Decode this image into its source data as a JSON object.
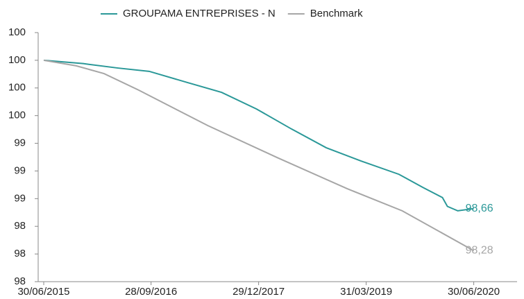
{
  "chart_data": {
    "type": "line",
    "xticks": [
      "30/06/2015",
      "28/09/2016",
      "29/12/2017",
      "31/03/2019",
      "30/06/2020"
    ],
    "xlim": [
      "30/06/2015",
      "31/12/2020"
    ],
    "ylim": [
      98,
      100.25
    ],
    "yticks": [
      98,
      {
        "value": 98.25,
        "label": "98"
      },
      {
        "value": 98.5,
        "label": "98"
      },
      {
        "value": 98.75,
        "label": "99"
      },
      99,
      {
        "value": 99.25,
        "label": "99"
      },
      {
        "value": 99.5,
        "label": "100"
      },
      {
        "value": 99.75,
        "label": "100"
      },
      100,
      {
        "value": 100.25,
        "label": "100"
      }
    ],
    "legend": "top",
    "series": [
      {
        "name": "GROUPAMA ENTREPRISES - N",
        "color": "#2a9898",
        "x": [
          "30/06/2015",
          "15/12/2015",
          "10/05/2016",
          "20/09/2016",
          "28/02/2017",
          "25/07/2017",
          "20/12/2017",
          "17/05/2018",
          "12/10/2018",
          "09/03/2019",
          "17/08/2019",
          "28/11/2019",
          "18/02/2020",
          "10/03/2020",
          "23/04/2020",
          "30/06/2020"
        ],
        "values": [
          100,
          99.97,
          99.93,
          99.9,
          99.8,
          99.71,
          99.56,
          99.38,
          99.21,
          99.09,
          98.97,
          98.85,
          98.76,
          98.68,
          98.64,
          98.66
        ],
        "value_labels": [
          null,
          null,
          null,
          null,
          null,
          null,
          null,
          null,
          null,
          null,
          null,
          null,
          null,
          null,
          null,
          "98,66"
        ]
      },
      {
        "name": "Benchmark",
        "color": "#a6a6a6",
        "x": [
          "30/06/2015",
          "15/11/2015",
          "12/03/2016",
          "07/08/2016",
          "27/05/2017",
          "19/03/2018",
          "09/01/2019",
          "31/08/2019",
          "30/06/2020"
        ],
        "values": [
          100,
          99.95,
          99.88,
          99.73,
          99.41,
          99.12,
          98.84,
          98.64,
          98.28
        ],
        "value_labels": [
          null,
          null,
          null,
          null,
          null,
          null,
          null,
          null,
          "98,28"
        ]
      }
    ]
  }
}
